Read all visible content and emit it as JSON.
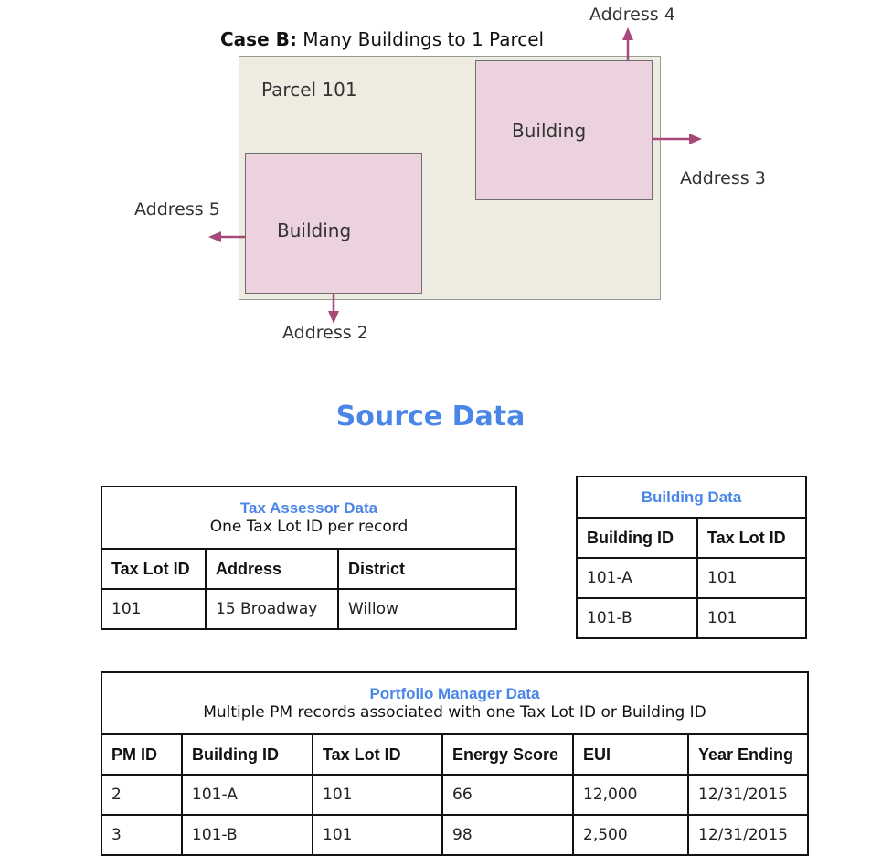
{
  "diagram": {
    "case_label": "Case B:",
    "case_title": "Many Buildings to 1 Parcel",
    "parcel_label": "Parcel 101",
    "building_label_1": "Building",
    "building_label_2": "Building",
    "address_2": "Address 2",
    "address_3": "Address 3",
    "address_4": "Address 4",
    "address_5": "Address 5",
    "colors": {
      "parcel": "#eeebe1",
      "building": "#ebd2de",
      "arrow": "#a8497b"
    }
  },
  "source_title": "Source Data",
  "tax_assessor": {
    "title": "Tax Assessor Data",
    "subtitle": "One Tax Lot ID per record",
    "headers": [
      "Tax Lot ID",
      "Address",
      "District"
    ],
    "rows": [
      [
        "101",
        "15 Broadway",
        "Willow"
      ]
    ]
  },
  "building_data": {
    "title": "Building Data",
    "headers": [
      "Building ID",
      "Tax Lot ID"
    ],
    "rows": [
      [
        "101-A",
        "101"
      ],
      [
        "101-B",
        "101"
      ]
    ]
  },
  "portfolio_manager": {
    "title": "Portfolio Manager Data",
    "subtitle": "Multiple PM records associated with one Tax Lot ID or Building ID",
    "headers": [
      "PM ID",
      "Building ID",
      "Tax Lot ID",
      "Energy Score",
      "EUI",
      "Year Ending"
    ],
    "rows": [
      [
        "2",
        "101-A",
        "101",
        "66",
        "12,000",
        "12/31/2015"
      ],
      [
        "3",
        "101-B",
        "101",
        "98",
        "2,500",
        "12/31/2015"
      ]
    ]
  }
}
